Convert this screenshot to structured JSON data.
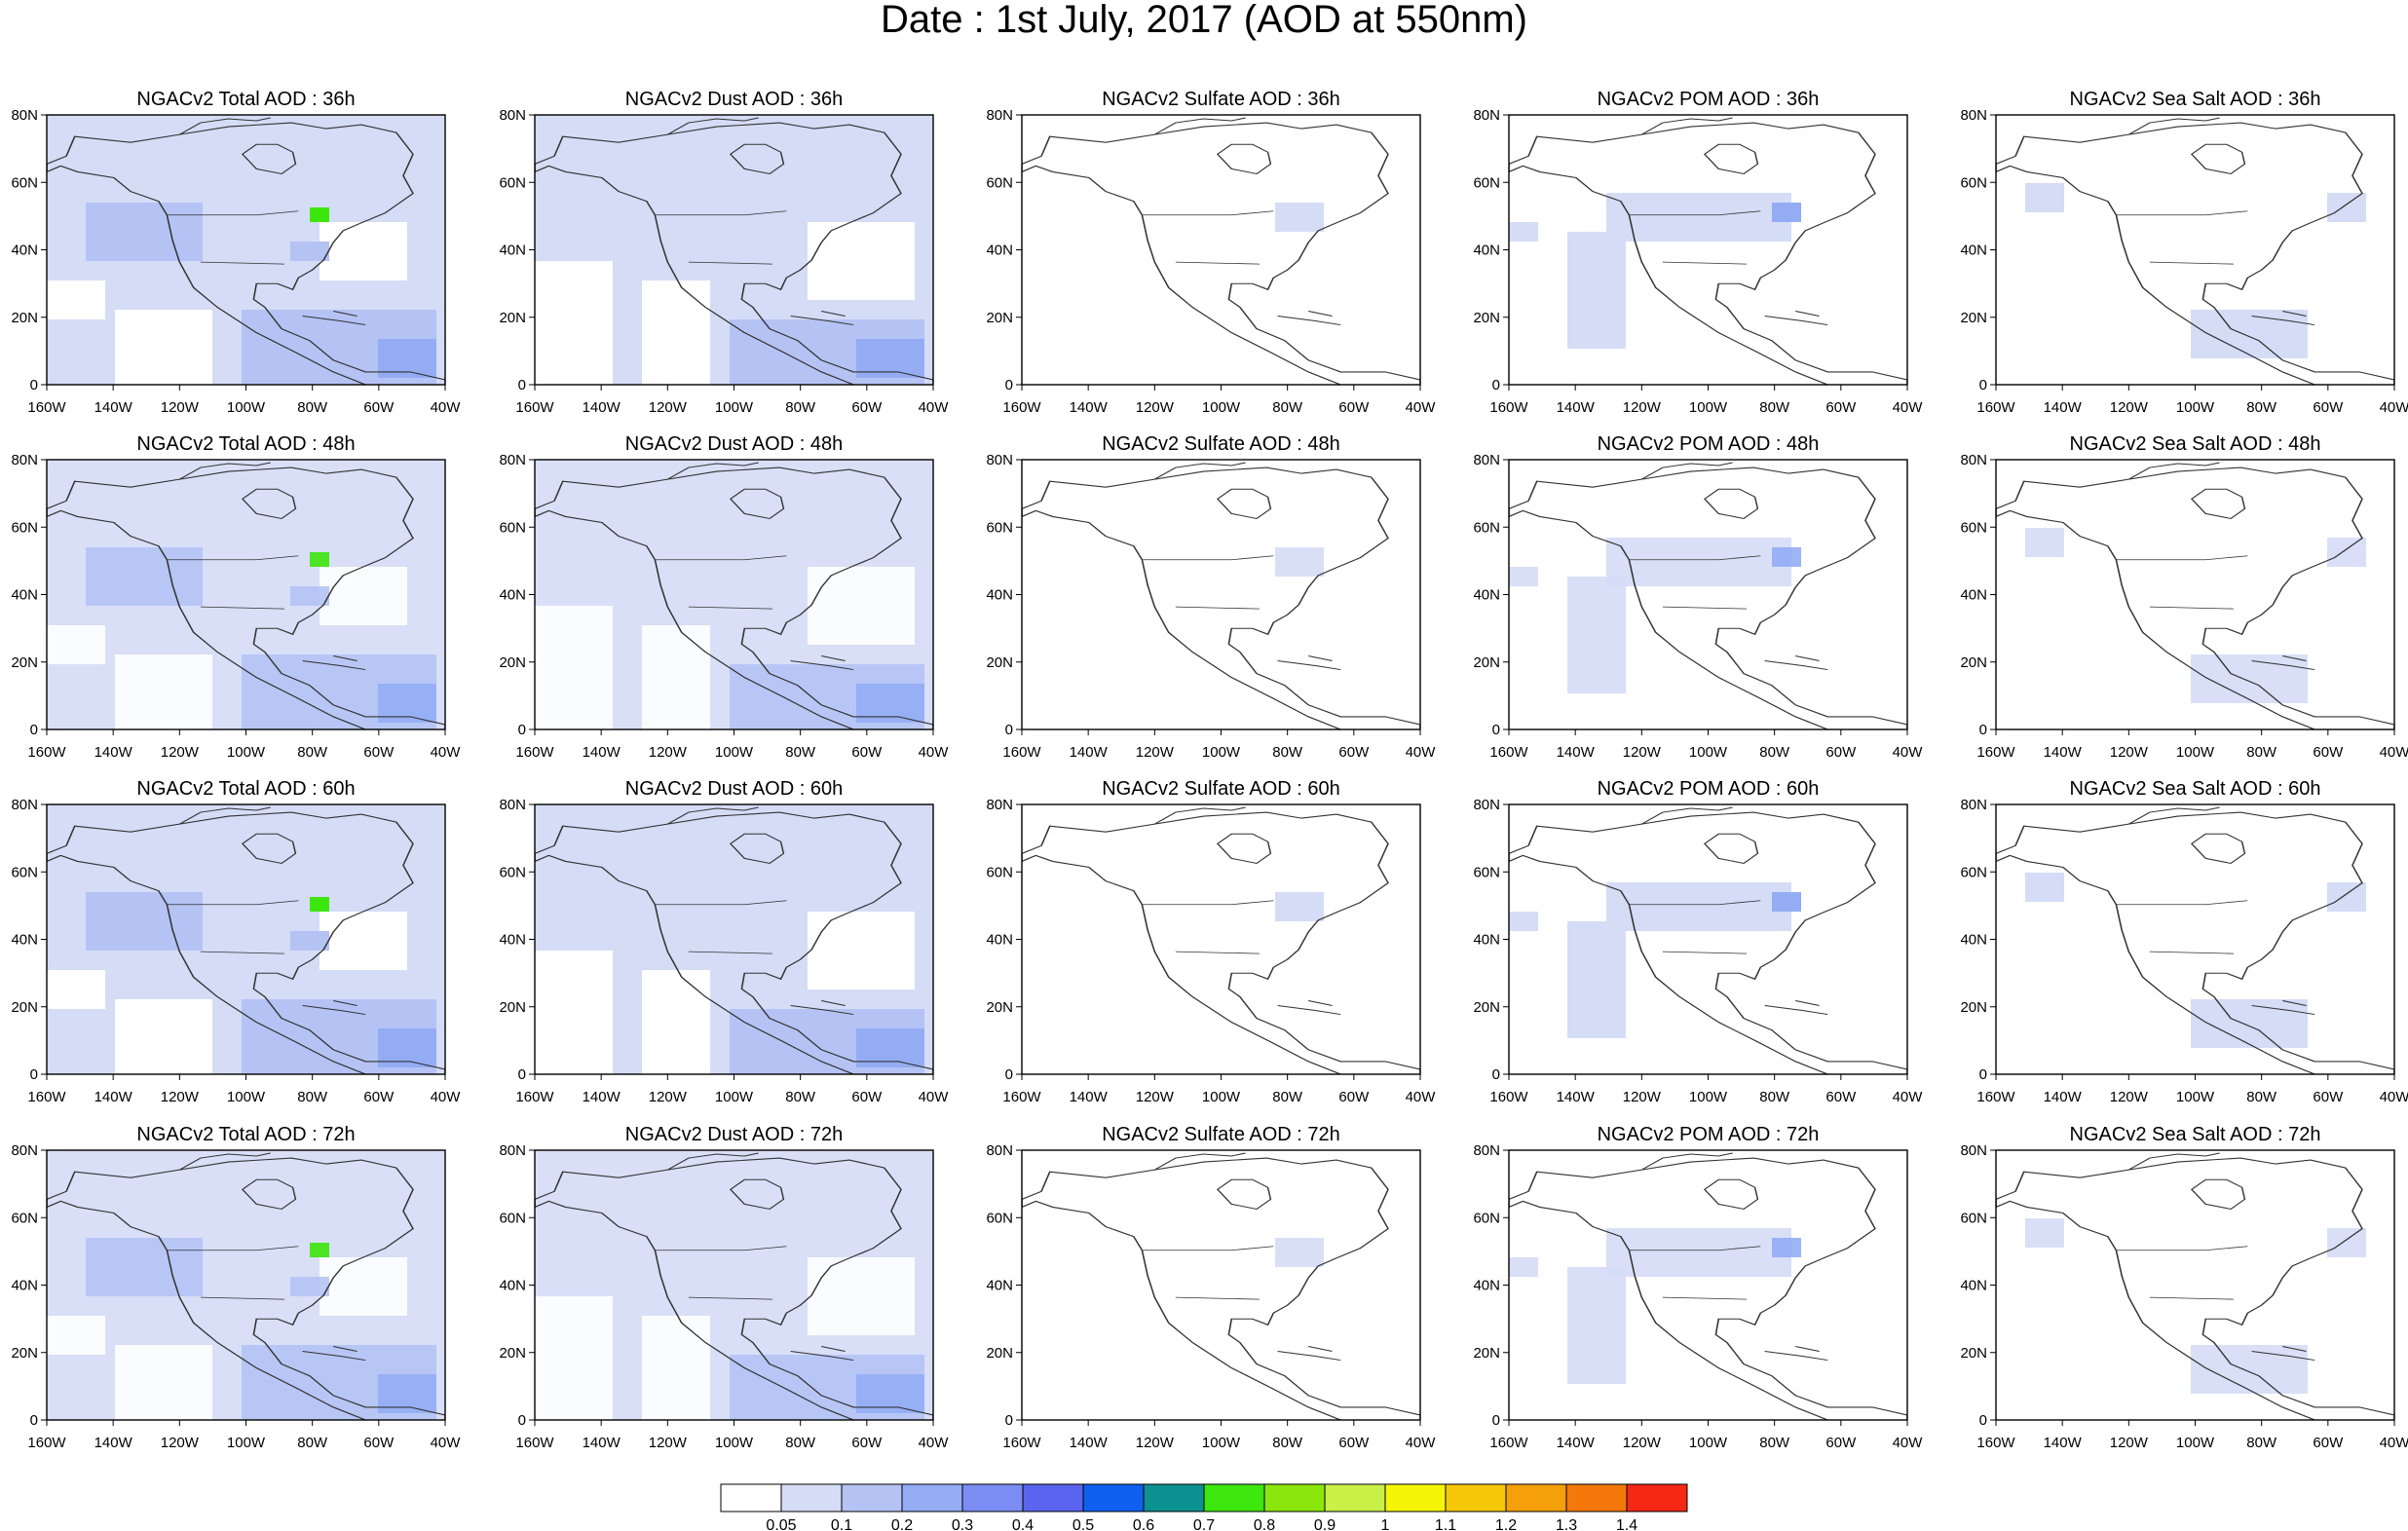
{
  "title": "Date : 1st July, 2017 (AOD at 550nm)",
  "panel_titles": [
    [
      "NGACv2 Total AOD : 36h",
      "NGACv2 Dust AOD : 36h",
      "NGACv2 Sulfate AOD : 36h",
      "NGACv2 POM AOD : 36h",
      "NGACv2 Sea Salt AOD : 36h"
    ],
    [
      "NGACv2 Total AOD : 48h",
      "NGACv2 Dust AOD : 48h",
      "NGACv2 Sulfate AOD : 48h",
      "NGACv2 POM AOD : 48h",
      "NGACv2 Sea Salt AOD : 48h"
    ],
    [
      "NGACv2 Total AOD : 60h",
      "NGACv2 Dust AOD : 60h",
      "NGACv2 Sulfate AOD : 60h",
      "NGACv2 POM AOD : 60h",
      "NGACv2 Sea Salt AOD : 60h"
    ],
    [
      "NGACv2 Total AOD : 72h",
      "NGACv2 Dust AOD : 72h",
      "NGACv2 Sulfate AOD : 72h",
      "NGACv2 POM AOD : 72h",
      "NGACv2 Sea Salt  AOD : 72h"
    ]
  ],
  "lat_ticks": [
    "80N",
    "60N",
    "40N",
    "20N",
    "0"
  ],
  "lon_ticks": [
    "160W",
    "140W",
    "120W",
    "100W",
    "80W",
    "60W",
    "40W"
  ],
  "colorbar": {
    "colors": [
      "#ffffff",
      "#d4dcf6",
      "#b4c3f4",
      "#94acf4",
      "#7b8df2",
      "#5a64ee",
      "#0f5ff0",
      "#0c9090",
      "#3de60c",
      "#8ae60c",
      "#c8f046",
      "#f5f50a",
      "#f5c80a",
      "#f5a00a",
      "#f5780a",
      "#f52814"
    ],
    "labels": [
      "0.05",
      "0.1",
      "0.2",
      "0.3",
      "0.4",
      "0.5",
      "0.6",
      "0.7",
      "0.8",
      "0.9",
      "1",
      "1.1",
      "1.2",
      "1.3",
      "1.4"
    ]
  }
}
